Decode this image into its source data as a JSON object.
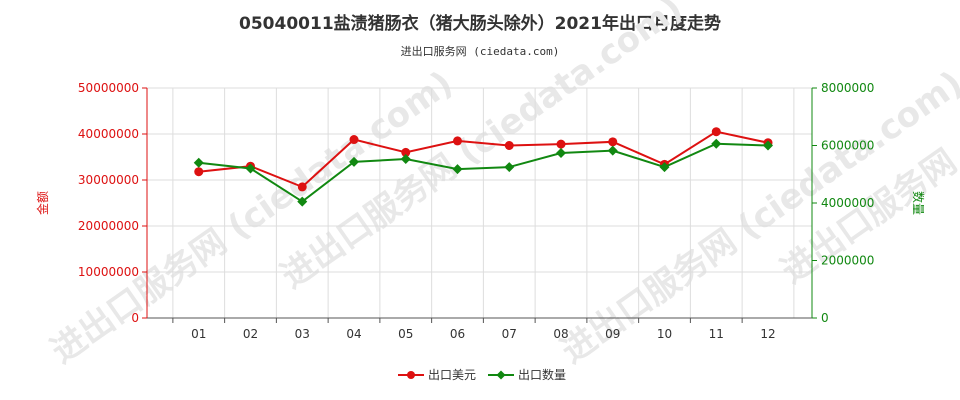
{
  "title": "05040011盐渍猪肠衣（猪大肠头除外）2021年出口月度走势",
  "subtitle": "进出口服务网 (ciedata.com)",
  "watermark": "进出口服务网 (ciedata.com)",
  "colors": {
    "amount": "#dd1111",
    "quantity": "#118811",
    "grid": "#dddddd",
    "axis": "#555555"
  },
  "chart_data": {
    "type": "line",
    "categories": [
      "01",
      "02",
      "03",
      "04",
      "05",
      "06",
      "07",
      "08",
      "09",
      "10",
      "11",
      "12"
    ],
    "y_left": {
      "label": "金额",
      "min": 0,
      "max": 50000000,
      "ticks": [
        0,
        10000000,
        20000000,
        30000000,
        40000000,
        50000000
      ],
      "tick_labels": [
        "0",
        "10000000",
        "20000000",
        "30000000",
        "40000000",
        "50000000"
      ]
    },
    "y_right": {
      "label": "数量",
      "min": 0,
      "max": 8000000,
      "ticks": [
        0,
        2000000,
        4000000,
        6000000,
        8000000
      ],
      "tick_labels": [
        "0",
        "2000000",
        "4000000",
        "6000000",
        "8000000"
      ]
    },
    "series": [
      {
        "name": "出口美元",
        "axis": "left",
        "values": [
          31800000,
          33000000,
          28500000,
          38800000,
          36000000,
          38500000,
          37500000,
          37800000,
          38300000,
          33400000,
          40500000,
          38100000
        ]
      },
      {
        "name": "出口数量",
        "axis": "right",
        "values": [
          5400000,
          5200000,
          4050000,
          5430000,
          5530000,
          5180000,
          5250000,
          5740000,
          5820000,
          5250000,
          6060000,
          6000000
        ]
      }
    ],
    "legend_position": "bottom-center",
    "grid": true
  }
}
